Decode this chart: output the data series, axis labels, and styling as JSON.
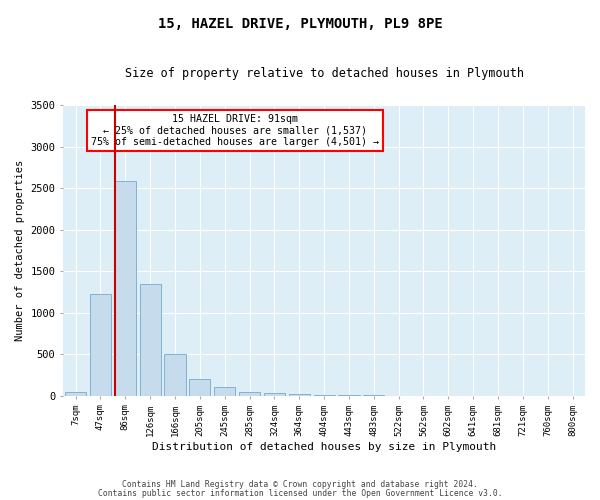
{
  "title": "15, HAZEL DRIVE, PLYMOUTH, PL9 8PE",
  "subtitle": "Size of property relative to detached houses in Plymouth",
  "xlabel": "Distribution of detached houses by size in Plymouth",
  "ylabel": "Number of detached properties",
  "bar_labels": [
    "7sqm",
    "47sqm",
    "86sqm",
    "126sqm",
    "166sqm",
    "205sqm",
    "245sqm",
    "285sqm",
    "324sqm",
    "364sqm",
    "404sqm",
    "443sqm",
    "483sqm",
    "522sqm",
    "562sqm",
    "602sqm",
    "641sqm",
    "681sqm",
    "721sqm",
    "760sqm",
    "800sqm"
  ],
  "bar_values": [
    50,
    1230,
    2590,
    1350,
    500,
    200,
    110,
    50,
    30,
    20,
    10,
    5,
    3,
    0,
    0,
    0,
    0,
    0,
    0,
    0,
    0
  ],
  "bar_color": "#c6dcec",
  "bar_edge_color": "#7fb3d3",
  "marker_label_line1": "15 HAZEL DRIVE: 91sqm",
  "marker_label_line2": "← 25% of detached houses are smaller (1,537)",
  "marker_label_line3": "75% of semi-detached houses are larger (4,501) →",
  "marker_color": "#cc0000",
  "ylim": [
    0,
    3500
  ],
  "yticks": [
    0,
    500,
    1000,
    1500,
    2000,
    2500,
    3000,
    3500
  ],
  "background_color": "#ffffff",
  "plot_bg_color": "#ddeef7",
  "grid_color": "#ffffff",
  "footnote1": "Contains HM Land Registry data © Crown copyright and database right 2024.",
  "footnote2": "Contains public sector information licensed under the Open Government Licence v3.0."
}
